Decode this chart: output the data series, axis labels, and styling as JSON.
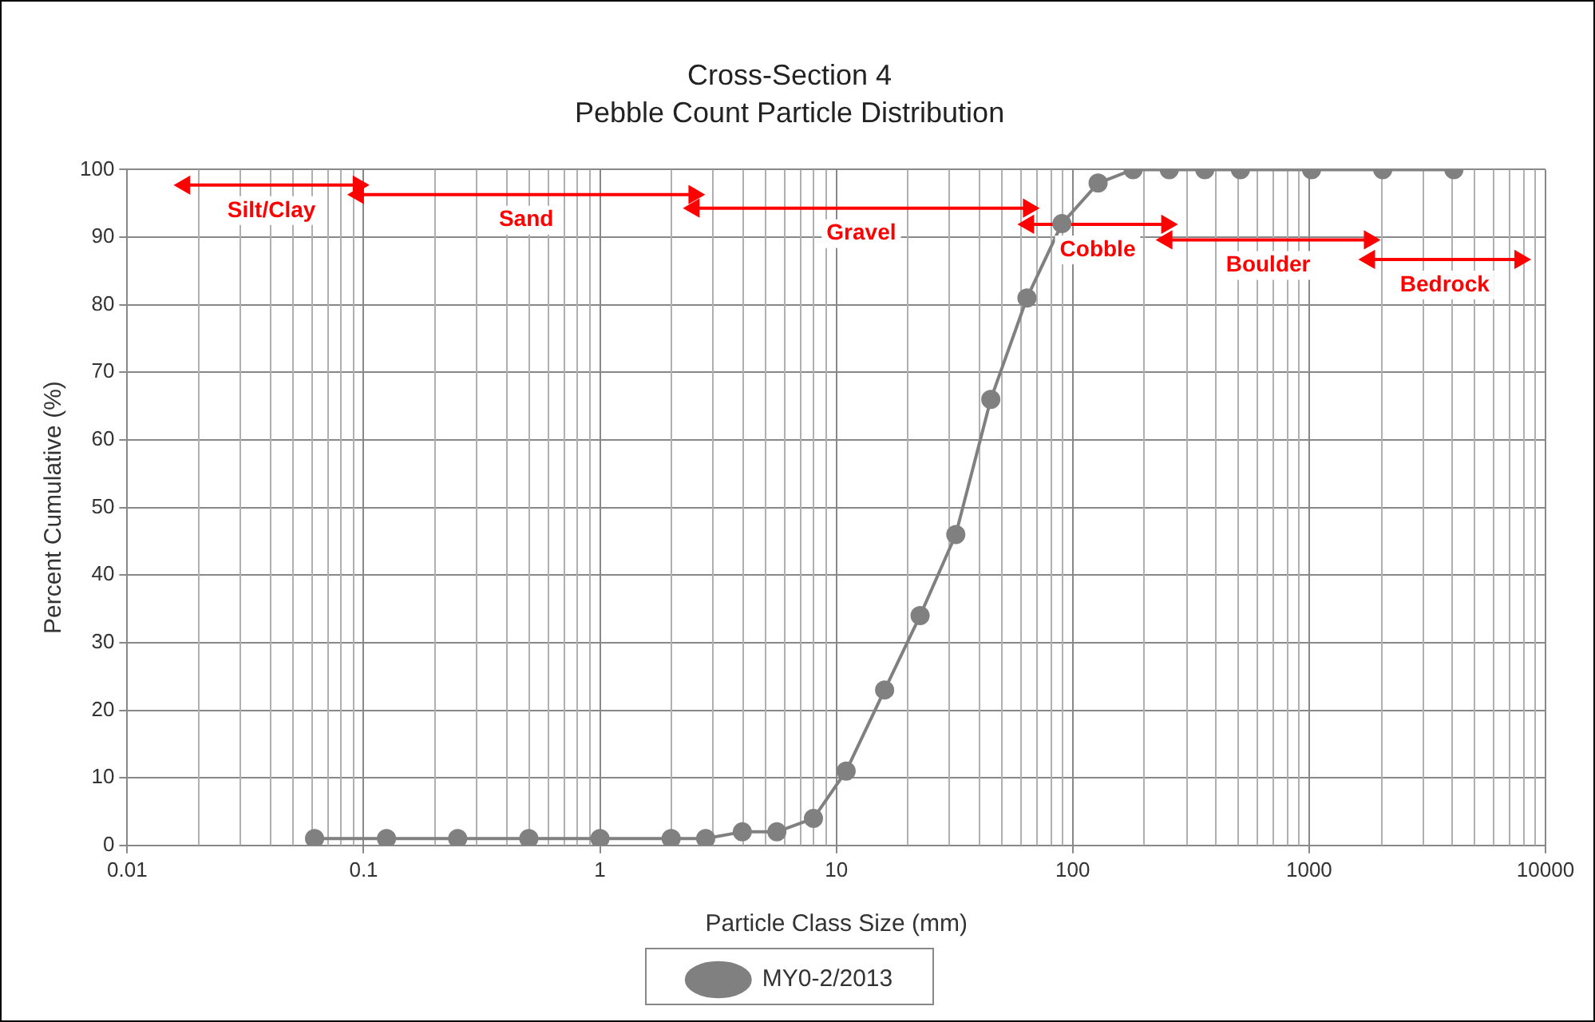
{
  "chart_data": {
    "type": "line",
    "title": "Cross-Section 4",
    "subtitle": "Pebble Count Particle Distribution",
    "xlabel": "Particle Class Size (mm)",
    "ylabel": "Percent Cumulative (%)",
    "series": [
      {
        "name": "MY0-2/2013",
        "color": "#808080",
        "x": [
          0.062,
          0.125,
          0.25,
          0.5,
          1,
          2,
          2.8,
          4,
          5.6,
          8,
          11,
          16,
          22.6,
          32,
          45,
          64,
          90,
          128,
          180,
          256,
          362,
          512,
          1024,
          2048,
          4096
        ],
        "values": [
          1,
          1,
          1,
          1,
          1,
          1,
          1,
          2,
          2,
          4,
          11,
          23,
          34,
          46,
          66,
          81,
          92,
          98,
          100,
          100,
          100,
          100,
          100,
          100,
          100
        ]
      },
      {
        "color": "#ff0000",
        "marker": "triangle",
        "x": [
          0.0175,
          0.095
        ],
        "values": [
          97.7,
          97.7
        ]
      },
      {
        "color": "#ff0000",
        "marker": "triangle",
        "x": [
          0.095,
          2.5
        ],
        "values": [
          96.3,
          96.3
        ]
      },
      {
        "color": "#ff0000",
        "marker": "triangle",
        "x": [
          2.5,
          65
        ],
        "values": [
          94.3,
          94.3
        ]
      },
      {
        "color": "#ff0000",
        "marker": "triangle",
        "x": [
          65,
          250
        ],
        "values": [
          91.9,
          91.9
        ]
      },
      {
        "color": "#ff0000",
        "marker": "triangle",
        "x": [
          250,
          1800
        ],
        "values": [
          89.6,
          89.6
        ]
      },
      {
        "color": "#ff0000",
        "marker": "triangle",
        "x": [
          1800,
          7800
        ],
        "values": [
          86.7,
          86.7
        ]
      }
    ],
    "annotations": [
      "Silt/Clay",
      "Sand",
      "Gravel",
      "Cobble",
      "Boulder",
      "Bedrock"
    ],
    "log": "x",
    "xlim": [
      0.01,
      10000
    ],
    "xticks": [
      0.01,
      0.1,
      1,
      10,
      100,
      1000,
      10000
    ],
    "ylim": [
      0,
      100
    ],
    "yticks": [
      0,
      10,
      20,
      30,
      40,
      50,
      60,
      70,
      80,
      90,
      100
    ],
    "grid": true,
    "legend": "bottom",
    "marker": "circle",
    "line_style": "solid"
  }
}
